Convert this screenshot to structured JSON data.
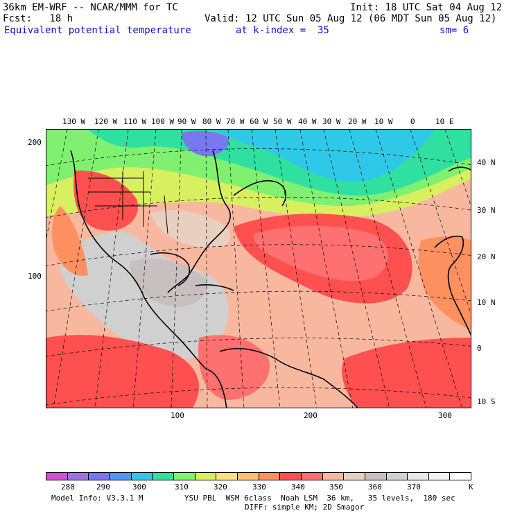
{
  "header": {
    "model": "36km EM-WRF -- NCAR/MMM for TC",
    "init": "Init: 18 UTC Sat 04 Aug 12",
    "fcst": "Fcst:   18 h",
    "valid": "Valid: 12 UTC Sun 05 Aug 12 (06 MDT Sun 05 Aug 12)",
    "field": "Equivalent potential temperature",
    "level": "at k-index =  35",
    "smoothing": "sm= 6"
  },
  "map": {
    "lon_labels": [
      "130 W",
      "120 W",
      "110 W",
      "100 W",
      "90 W",
      "80 W",
      "70 W",
      "60 W",
      "50 W",
      "40 W",
      "30 W",
      "20 W",
      "10 W",
      "0",
      "10 E"
    ],
    "lat_labels": [
      "40 N",
      "30 N",
      "20 N",
      "10 N",
      "0",
      "10 S"
    ],
    "grid_y_labels": [
      "200",
      "100"
    ],
    "grid_x_labels": [
      "100",
      "200",
      "300"
    ]
  },
  "legend": {
    "labels": [
      "280",
      "290",
      "300",
      "310",
      "320",
      "330",
      "340",
      "350",
      "360",
      "370"
    ],
    "unit": "K",
    "colors": [
      "#d050d0",
      "#a070e0",
      "#7878f0",
      "#5098f0",
      "#30c8e8",
      "#30e0a0",
      "#80f070",
      "#d8f060",
      "#ffe080",
      "#ffc070",
      "#ff9060",
      "#ff5050",
      "#ff7070",
      "#f8b8a0",
      "#e8d0c0",
      "#c8c0c0",
      "#d0d0d0",
      "#e8e8e8",
      "#f4f4f4",
      "#ffffff"
    ]
  },
  "footer": {
    "model_info": "Model Info: V3.3.1 M",
    "physics": "YSU PBL  WSM 6class  Noah LSM  36 km,   35 levels,  180 sec",
    "diffusion": "DIFF: simple KM; 2D Smagor"
  }
}
